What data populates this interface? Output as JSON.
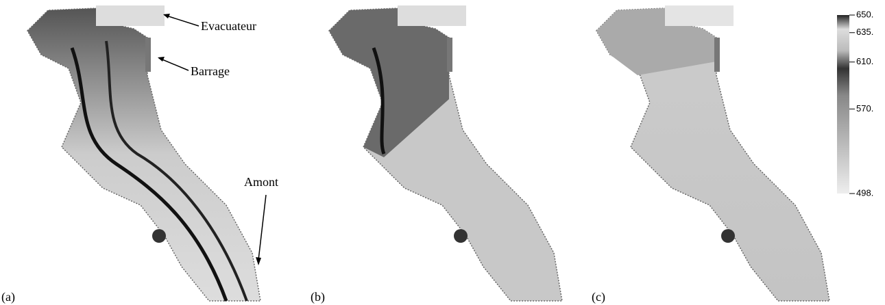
{
  "panels": [
    {
      "label": "(a)"
    },
    {
      "label": "(b)"
    },
    {
      "label": "(c)"
    }
  ],
  "annotations": {
    "spillway": "Evacuateur",
    "dam": "Barrage",
    "upstream": "Amont"
  },
  "colorbar": {
    "lim": [
      498,
      650
    ],
    "ticks": [
      {
        "value": 650,
        "label": "650."
      },
      {
        "value": 635,
        "label": "635."
      },
      {
        "value": 610,
        "label": "610."
      },
      {
        "value": 570,
        "label": "570."
      },
      {
        "value": 498,
        "label": "498."
      }
    ]
  }
}
